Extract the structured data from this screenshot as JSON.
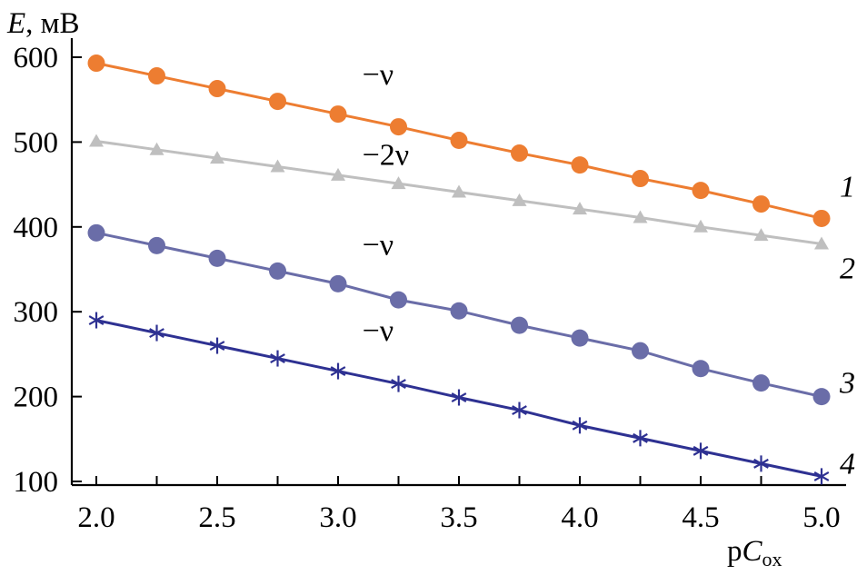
{
  "chart_data": {
    "type": "line",
    "ylabel": {
      "symbol": "E",
      "unit": ", мВ"
    },
    "xlabel": {
      "prefix": "p",
      "symbol": "C",
      "subscript": "ox"
    },
    "xlim": [
      1.9,
      5.1
    ],
    "ylim": [
      100,
      620
    ],
    "xticks": [
      2.0,
      2.5,
      3.0,
      3.5,
      4.0,
      4.5,
      5.0
    ],
    "xtick_labels": [
      "2.0",
      "2.5",
      "3.0",
      "3.5",
      "4.0",
      "4.5",
      "5.0"
    ],
    "yticks": [
      100,
      200,
      300,
      400,
      500,
      600
    ],
    "ytick_labels": [
      "100",
      "200",
      "300",
      "400",
      "500",
      "600"
    ],
    "x": [
      2.0,
      2.25,
      2.5,
      2.75,
      3.0,
      3.25,
      3.5,
      3.75,
      4.0,
      4.25,
      4.5,
      4.75,
      5.0
    ],
    "grid": false,
    "series": [
      {
        "name": "1",
        "color": "#ED7D31",
        "marker": "circle",
        "values": [
          593,
          578,
          563,
          548,
          533,
          518,
          502,
          487,
          473,
          457,
          443,
          427,
          410
        ]
      },
      {
        "name": "2",
        "color": "#BFBFBF",
        "marker": "triangle",
        "values": [
          501,
          491,
          481,
          471,
          461,
          451,
          441,
          431,
          421,
          411,
          400,
          390,
          380
        ]
      },
      {
        "name": "3",
        "color": "#6A6DA8",
        "marker": "circle",
        "values": [
          393,
          378,
          363,
          348,
          333,
          314,
          301,
          284,
          269,
          254,
          233,
          216,
          200
        ]
      },
      {
        "name": "4",
        "color": "#2E3192",
        "marker": "asterisk",
        "values": [
          290,
          275,
          260,
          245,
          230,
          215,
          199,
          184,
          166,
          151,
          136,
          121,
          106
        ]
      }
    ],
    "annotations": [
      {
        "text": "−ν",
        "x": 3.1,
        "y": 568
      },
      {
        "text": "−2ν",
        "x": 3.1,
        "y": 473
      },
      {
        "text": "−ν",
        "x": 3.1,
        "y": 367
      },
      {
        "text": "−ν",
        "x": 3.1,
        "y": 266
      }
    ]
  }
}
